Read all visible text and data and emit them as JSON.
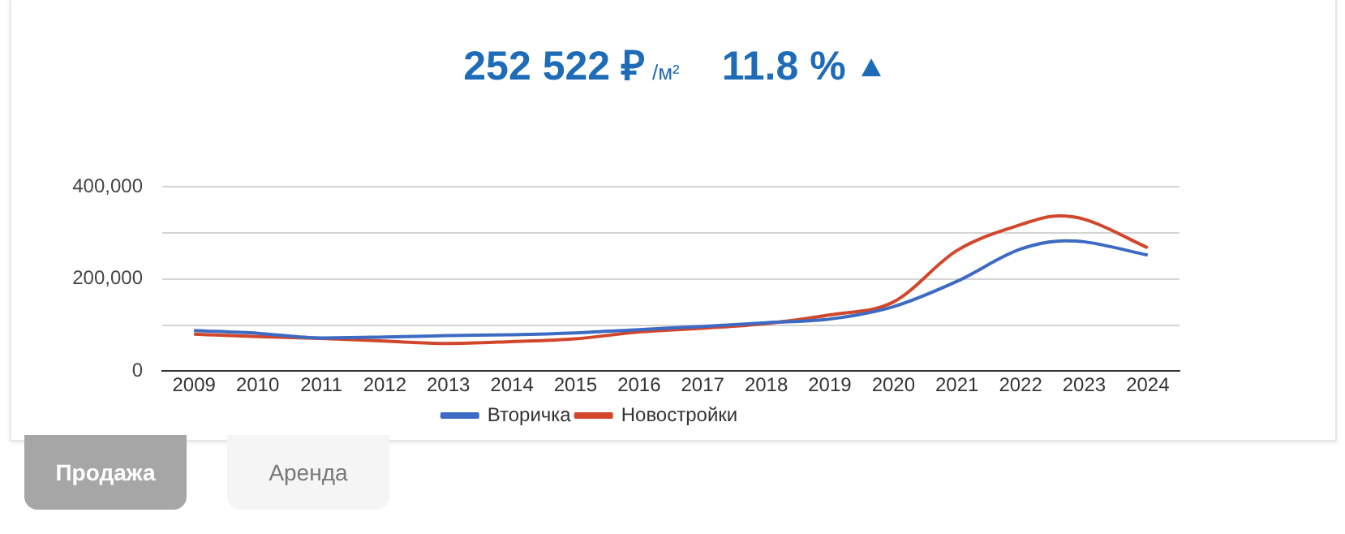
{
  "chart_data": {
    "type": "line",
    "title": "252 522 ₽",
    "subtitle": "/м²",
    "annotations": [
      "11.8 %",
      "Продажа",
      "Аренда"
    ],
    "xlim": [
      2008.5,
      2024.5
    ],
    "xticks": [
      2009,
      2010,
      2011,
      2012,
      2013,
      2014,
      2015,
      2016,
      2017,
      2018,
      2019,
      2020,
      2021,
      2022,
      2023,
      2024
    ],
    "ylim": [
      0,
      400000
    ],
    "yticks": [
      0,
      {
        "value": 100000,
        "label": null
      },
      {
        "value": 200000,
        "label": "200,000"
      },
      {
        "value": 300000,
        "label": null
      },
      {
        "value": 400000,
        "label": "400,000"
      }
    ],
    "grid": "y",
    "legend": "bottom",
    "marker": "none",
    "line_style": "solid",
    "series": [
      {
        "name": "Вторичка",
        "color": "#3d6bc4",
        "x": [
          2009,
          2010,
          2011,
          2012,
          2013,
          2014,
          2015,
          2016,
          2017,
          2018,
          2019,
          2020,
          2021,
          2022,
          2022.7,
          2023,
          2024
        ],
        "values": [
          88000,
          82000,
          72000,
          74000,
          77000,
          79000,
          83000,
          90000,
          97000,
          105000,
          113000,
          140000,
          195000,
          265000,
          283000,
          281000,
          252000
        ]
      },
      {
        "name": "Новостройки",
        "color": "#d2472b",
        "x": [
          2009,
          2010,
          2011,
          2012,
          2013,
          2014,
          2015,
          2016,
          2017,
          2018,
          2019,
          2020,
          2021,
          2022,
          2022.6,
          2023,
          2024
        ],
        "values": [
          80000,
          75000,
          71000,
          65000,
          60000,
          64000,
          70000,
          85000,
          93000,
          103000,
          122000,
          150000,
          262000,
          318000,
          337000,
          330000,
          268000
        ]
      }
    ]
  }
}
